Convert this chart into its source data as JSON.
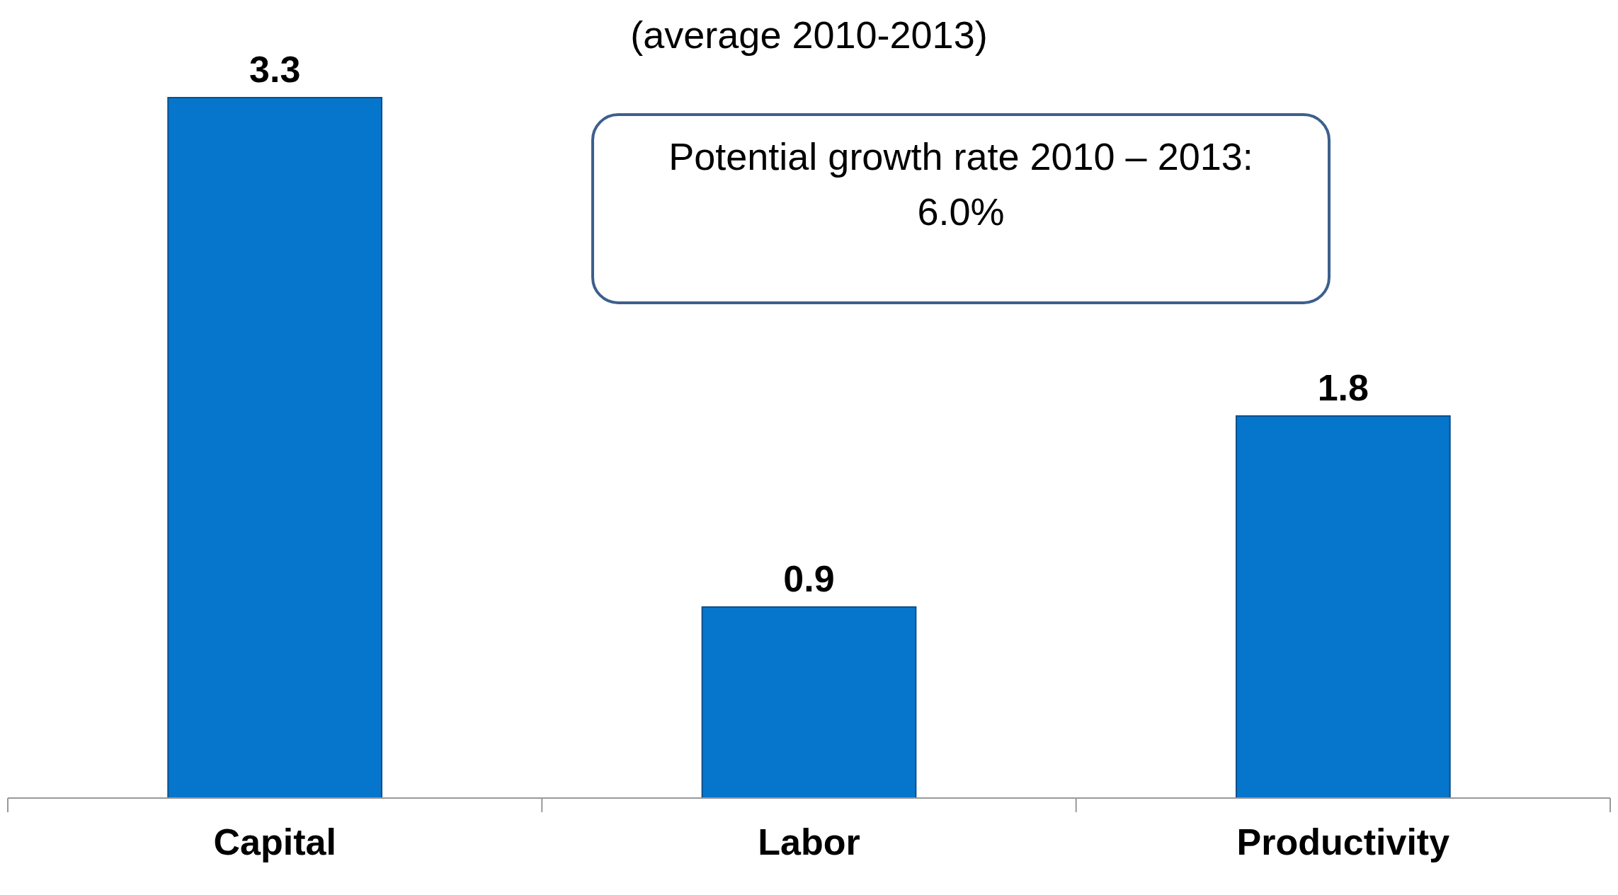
{
  "chart_data": {
    "type": "bar",
    "subtitle": "(average 2010-2013)",
    "categories": [
      "Capital",
      "Labor",
      "Productivity"
    ],
    "values": [
      3.3,
      0.9,
      1.8
    ],
    "color": "#0676cc",
    "data_labels": true,
    "annotations": [
      "Potential growth rate 2010 – 2013:\n6.0%"
    ]
  }
}
